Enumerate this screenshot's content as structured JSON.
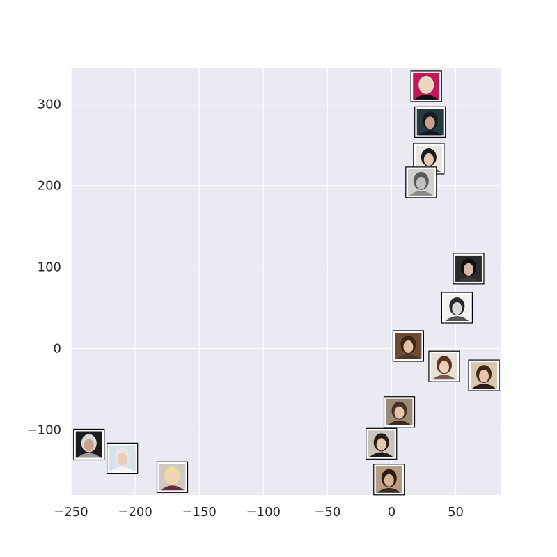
{
  "chart_data": {
    "type": "scatter",
    "title": "",
    "xlabel": "",
    "ylabel": "",
    "xlim": [
      -250,
      85
    ],
    "ylim": [
      -180,
      345
    ],
    "grid": true,
    "legend": "none",
    "x_ticks": [
      {
        "value": -250,
        "label": "−250"
      },
      {
        "value": -200,
        "label": "−200"
      },
      {
        "value": -150,
        "label": "−150"
      },
      {
        "value": -100,
        "label": "−100"
      },
      {
        "value": -50,
        "label": "−50"
      },
      {
        "value": 0,
        "label": "0"
      },
      {
        "value": 50,
        "label": "50"
      }
    ],
    "y_ticks": [
      {
        "value": -100,
        "label": "−100"
      },
      {
        "value": 0,
        "label": "0"
      },
      {
        "value": 100,
        "label": "100"
      },
      {
        "value": 200,
        "label": "200"
      },
      {
        "value": 300,
        "label": "300"
      }
    ],
    "points": [
      {
        "x": 27,
        "y": 322,
        "thumb": {
          "bg": "#c2185b",
          "hair": "#e8dcc0",
          "skin": "#f1d3bf",
          "cloth": "#111111"
        }
      },
      {
        "x": 30,
        "y": 278,
        "thumb": {
          "bg": "#243a40",
          "hair": "#1a1a1a",
          "skin": "#c9a28f",
          "cloth": "#0e1a1c"
        }
      },
      {
        "x": 29,
        "y": 233,
        "thumb": {
          "bg": "#e9e6e2",
          "hair": "#1b1b1b",
          "skin": "#e6c7b3",
          "cloth": "#6b3e2e"
        }
      },
      {
        "x": 23,
        "y": 204,
        "thumb": {
          "bg": "#d0d0d0",
          "hair": "#5a5a5a",
          "skin": "#bfbfbf",
          "cloth": "#8a8a8a"
        }
      },
      {
        "x": 60,
        "y": 98,
        "thumb": {
          "bg": "#2b2b2b",
          "hair": "#111111",
          "skin": "#d7b8a6",
          "cloth": "#3a3a3a"
        }
      },
      {
        "x": 51,
        "y": 50,
        "thumb": {
          "bg": "#f2f2f2",
          "hair": "#2a2a2a",
          "skin": "#d9d9d9",
          "cloth": "#555555"
        }
      },
      {
        "x": 13,
        "y": 3,
        "thumb": {
          "bg": "#6b4a36",
          "hair": "#3b2618",
          "skin": "#e2c0a6",
          "cloth": "#4a3526"
        }
      },
      {
        "x": 41,
        "y": -22,
        "thumb": {
          "bg": "#e8e0d6",
          "hair": "#5a3524",
          "skin": "#f0cdb6",
          "cloth": "#7a5a4a"
        }
      },
      {
        "x": 72,
        "y": -33,
        "thumb": {
          "bg": "#d9c7b0",
          "hair": "#3d2819",
          "skin": "#e8c6ae",
          "cloth": "#2a1e16"
        }
      },
      {
        "x": 6,
        "y": -78,
        "thumb": {
          "bg": "#9c8a78",
          "hair": "#4a3020",
          "skin": "#e3c4ad",
          "cloth": "#3d2b20"
        }
      },
      {
        "x": -8,
        "y": -117,
        "thumb": {
          "bg": "#c9c4bd",
          "hair": "#2c1d14",
          "skin": "#e5c8b2",
          "cloth": "#1f1a17"
        }
      },
      {
        "x": -2,
        "y": -161,
        "thumb": {
          "bg": "#b79c84",
          "hair": "#2a1a10",
          "skin": "#d9b193",
          "cloth": "#3a2a20"
        }
      },
      {
        "x": -236,
        "y": -118,
        "thumb": {
          "bg": "#1c1c1c",
          "hair": "#d8d8d8",
          "skin": "#c9a38a",
          "cloth": "#9a9a9a"
        }
      },
      {
        "x": -210,
        "y": -135,
        "thumb": {
          "bg": "#d8e2ea",
          "hair": "#e6e6e6",
          "skin": "#e9cbb7",
          "cloth": "#f4f4f4"
        }
      },
      {
        "x": -171,
        "y": -158,
        "thumb": {
          "bg": "#cfc9c4",
          "hair": "#f0dc9a",
          "skin": "#f2d2bd",
          "cloth": "#6a2a3a"
        }
      }
    ]
  }
}
